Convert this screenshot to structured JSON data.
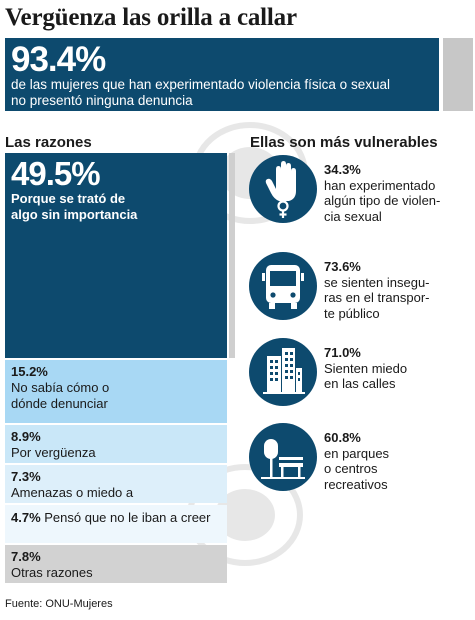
{
  "title": "Vergüenza las orilla a callar",
  "hero": {
    "value": "93.4%",
    "text_line1": "de las mujeres que han experimentado violencia física o sexual",
    "text_line2": "no presentó ninguna denuncia"
  },
  "left_section_title": "Las razones",
  "right_section_title": "Ellas son más vulnerables",
  "chart_data": [
    {
      "type": "bar",
      "title": "Las razones",
      "categories": [
        "Porque se trató de algo sin importancia",
        "No sabía cómo o dónde denunciar",
        "Por vergüenza",
        "Amenazas o miedo a consecuencias",
        "Pensó que no le iban a creer",
        "Otras razones"
      ],
      "values": [
        49.5,
        15.2,
        8.9,
        7.3,
        4.7,
        7.8
      ],
      "labels": [
        "49.5%",
        "15.2%",
        "8.9%",
        "7.3%",
        "4.7%",
        "7.8%"
      ],
      "label_lines": [
        [
          "Porque se trató de",
          "algo sin importancia"
        ],
        [
          "No sabía cómo o",
          "dónde denunciar"
        ],
        [
          "Por vergüenza"
        ],
        [
          "Amenazas o miedo a consecuencias"
        ],
        [
          "Pensó que no le iban a creer"
        ],
        [
          "Otras razones"
        ]
      ],
      "colors": [
        "#0d4a6e",
        "#a8d8f4",
        "#c9e7f8",
        "#ddeffa",
        "#eef7fd",
        "#d2d2d2"
      ]
    },
    {
      "type": "table",
      "title": "Ellas son más vulnerables",
      "items": [
        {
          "value": 34.3,
          "label": "34.3%",
          "icon": "hand-female-icon",
          "lines": [
            "han experimentado",
            "algún tipo de violen-",
            "cia sexual"
          ]
        },
        {
          "value": 73.6,
          "label": "73.6%",
          "icon": "bus-icon",
          "lines": [
            "se sienten insegu-",
            "ras en el transpor-",
            "te público"
          ]
        },
        {
          "value": 71.0,
          "label": "71.0%",
          "icon": "buildings-icon",
          "lines": [
            "Sienten miedo",
            "en las calles"
          ]
        },
        {
          "value": 60.8,
          "label": "60.8%",
          "icon": "park-icon",
          "lines": [
            "en parques",
            "o centros",
            "recreativos"
          ]
        }
      ]
    }
  ],
  "source": "Fuente: ONU-Mujeres",
  "colors": {
    "primary": "#0d4a6e",
    "grey": "#c7c7c7"
  }
}
